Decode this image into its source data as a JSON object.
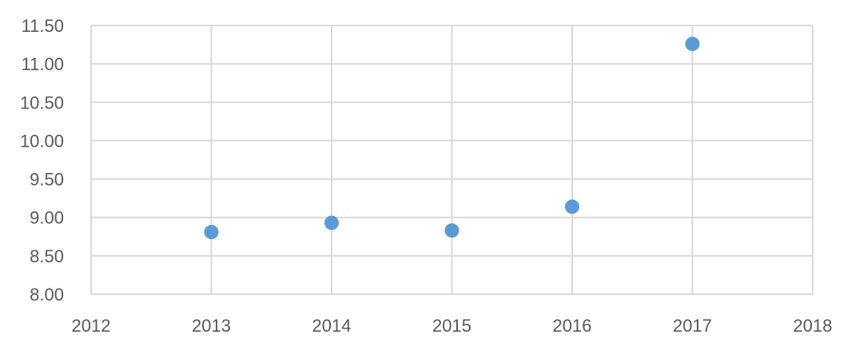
{
  "chart_data": {
    "type": "scatter",
    "title": "",
    "xlabel": "",
    "ylabel": "",
    "xlim": [
      2012,
      2018
    ],
    "ylim": [
      8.0,
      11.5
    ],
    "x_ticks": [
      "2012",
      "2013",
      "2014",
      "2015",
      "2016",
      "2017",
      "2018"
    ],
    "y_ticks": [
      "8.00",
      "8.50",
      "9.00",
      "9.50",
      "10.00",
      "10.50",
      "11.00",
      "11.50"
    ],
    "grid": true,
    "legend": "none",
    "marker_color": "#5b9bd5",
    "series": [
      {
        "x": [
          2013,
          2014,
          2015,
          2016,
          2017
        ],
        "y": [
          8.81,
          8.93,
          8.83,
          9.14,
          11.26
        ]
      }
    ]
  }
}
